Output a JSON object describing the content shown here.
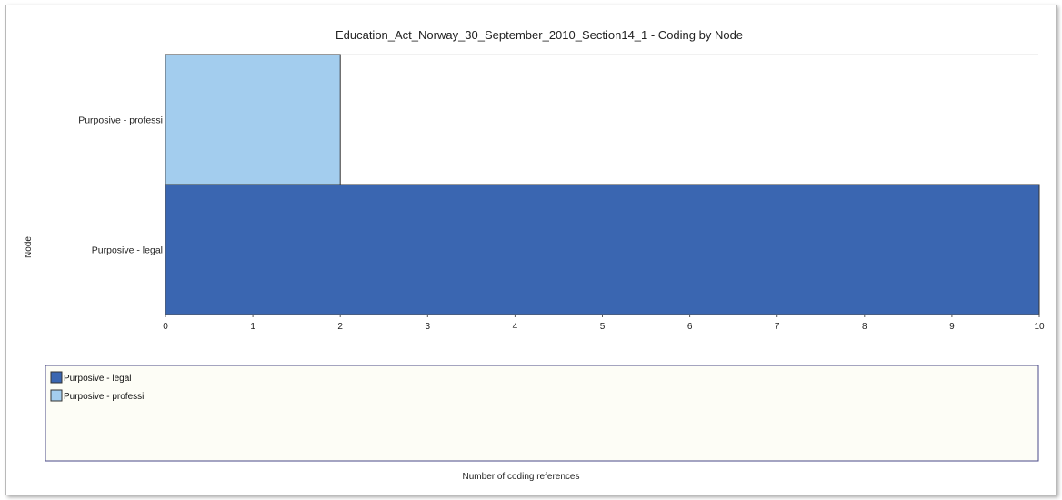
{
  "chart_data": {
    "type": "bar",
    "orientation": "horizontal",
    "title": "Education_Act_Norway_30_September_2010_Section14_1 - Coding by Node",
    "xlabel": "Number of coding references",
    "ylabel": "Node",
    "xlim": [
      0,
      10
    ],
    "xticks": [
      "0",
      "1",
      "2",
      "3",
      "4",
      "5",
      "6",
      "7",
      "8",
      "9",
      "10"
    ],
    "grid": false,
    "legend_position": "bottom",
    "categories": [
      "Purposive - professi",
      "Purposive - legal"
    ],
    "values": [
      2,
      10
    ],
    "colors": [
      "#a3cdee",
      "#3a66b1"
    ],
    "legend": [
      {
        "label": "Purposive - legal",
        "color": "#3a66b1"
      },
      {
        "label": "Purposive - professi",
        "color": "#a3cdee"
      }
    ]
  }
}
